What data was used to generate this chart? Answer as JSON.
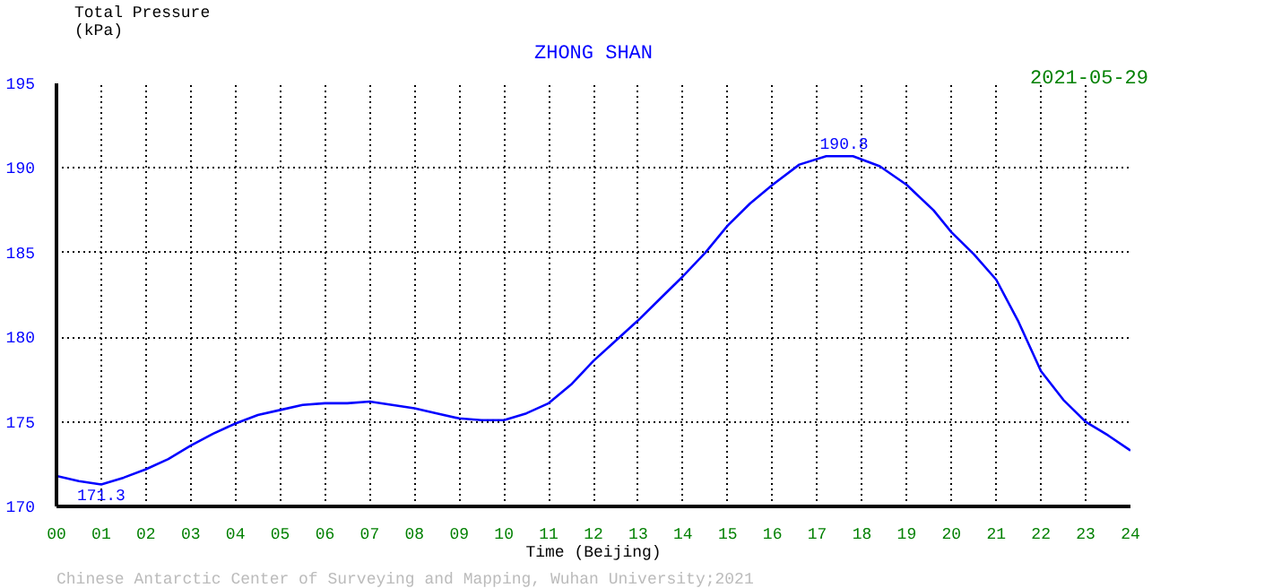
{
  "chart_data": {
    "type": "line",
    "title": "ZHONG SHAN",
    "subtitle": "2021-05-29",
    "xlabel": "Time\n(Beijing)",
    "ylabel": "Total Pressure\n(kPa)",
    "x": [
      0,
      0.5,
      1,
      1.5,
      2,
      2.5,
      3,
      3.5,
      4,
      4.5,
      5,
      5.5,
      6,
      6.5,
      7,
      7.5,
      8,
      8.5,
      9,
      9.5,
      10,
      10.5,
      11,
      11.5,
      12,
      12.5,
      13,
      13.5,
      14,
      14.5,
      15,
      15.5,
      16,
      16.6,
      17.2,
      17.8,
      18.4,
      19,
      19.6,
      20,
      20.5,
      21,
      21.5,
      22,
      22.5,
      23,
      23.5,
      24
    ],
    "series": [
      {
        "color": "#0000ff",
        "values": [
          171.8,
          171.5,
          171.3,
          171.7,
          172.2,
          172.8,
          173.6,
          174.3,
          174.9,
          175.4,
          175.7,
          176.0,
          176.1,
          176.1,
          176.2,
          176.0,
          175.8,
          175.5,
          175.2,
          175.1,
          175.1,
          175.5,
          176.1,
          177.2,
          178.6,
          179.8,
          181.0,
          182.3,
          183.6,
          185.0,
          186.6,
          187.9,
          189.0,
          190.2,
          190.7,
          190.7,
          190.1,
          189.0,
          187.5,
          186.2,
          184.9,
          183.4,
          180.9,
          178.0,
          176.3,
          175.0,
          174.2,
          173.3
        ]
      }
    ],
    "xlim": [
      0,
      24
    ],
    "ylim": [
      170,
      195
    ],
    "xticks": [
      {
        "value": 0,
        "label": "00"
      },
      {
        "value": 1,
        "label": "01"
      },
      {
        "value": 2,
        "label": "02"
      },
      {
        "value": 3,
        "label": "03"
      },
      {
        "value": 4,
        "label": "04"
      },
      {
        "value": 5,
        "label": "05"
      },
      {
        "value": 6,
        "label": "06"
      },
      {
        "value": 7,
        "label": "07"
      },
      {
        "value": 8,
        "label": "08"
      },
      {
        "value": 9,
        "label": "09"
      },
      10,
      11,
      12,
      13,
      14,
      15,
      16,
      17,
      18,
      19,
      20,
      21,
      22,
      23,
      24
    ],
    "yticks": [
      170,
      175,
      180,
      185,
      190,
      195
    ],
    "grid": true,
    "line_style": "solid",
    "annotations": [
      {
        "text": "171.3",
        "x": 1,
        "y": 171.3
      },
      {
        "text": "190.8",
        "x": 17.6,
        "y": 190.8
      },
      "Chinese Antarctic Center of Surveying and Mapping, Wuhan University;2021"
    ]
  }
}
